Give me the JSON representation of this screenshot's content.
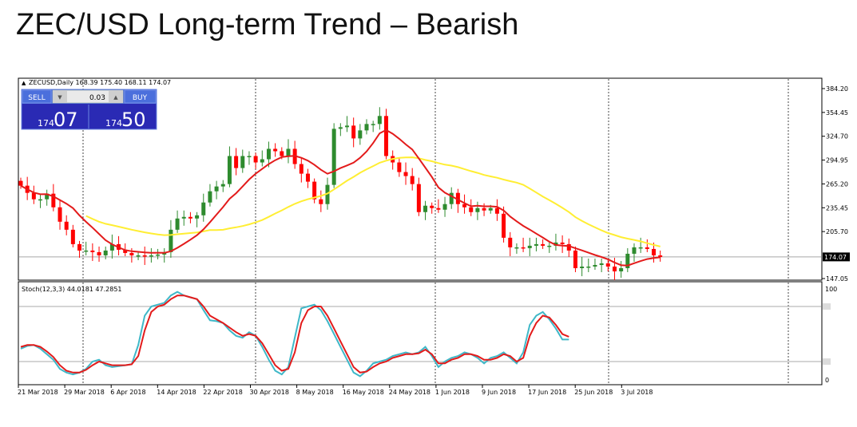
{
  "page_title": "ZEC/USD Long-term Trend – Bearish",
  "colors": {
    "bull": "#2e8b2e",
    "bear": "#ff0000",
    "ma_fast": "#e31b1b",
    "ma_slow": "#ffee33",
    "stoch_main": "#3fb8c8",
    "stoch_signal": "#e31b1b",
    "panel_bg": "#2020b8",
    "panel_header": "#4a6ad8",
    "grid_vline": "#444444",
    "level_line": "#a8a8a8"
  },
  "trade_panel": {
    "sell_label": "SELL",
    "buy_label": "BUY",
    "lot": "0.03",
    "sell_price_small": "174",
    "sell_price_big": "07",
    "buy_price_small": "174",
    "buy_price_big": "50"
  },
  "chart_data": [
    {
      "type": "candlestick",
      "header": "ZECUSD,Daily  168.39 175.40 168.11 174.07",
      "symbol": "ZECUSD",
      "timeframe": "Daily",
      "last_ohlc": {
        "open": 168.39,
        "high": 175.4,
        "low": 168.11,
        "close": 174.07
      },
      "current_price_label": "174.07",
      "y_ticks": [
        "384.20",
        "354.45",
        "324.70",
        "294.95",
        "265.20",
        "235.45",
        "205.70",
        "174.07",
        "147.05"
      ],
      "ylim": [
        147.05,
        384.2
      ],
      "x_ticks": [
        "21 Mar 2018",
        "29 Mar 2018",
        "6 Apr 2018",
        "14 Apr 2018",
        "22 Apr 2018",
        "30 Apr 2018",
        "8 May 2018",
        "16 May 2018",
        "24 May 2018",
        "1 Jun 2018",
        "9 Jun 2018",
        "17 Jun 2018",
        "25 Jun 2018",
        "3 Jul 2018"
      ],
      "closes": [
        263,
        254,
        246,
        246,
        253,
        236,
        218,
        208,
        190,
        182,
        182,
        180,
        176,
        182,
        190,
        183,
        179,
        176,
        176,
        175,
        176,
        177,
        180,
        208,
        222,
        224,
        222,
        226,
        242,
        256,
        262,
        265,
        300,
        285,
        300,
        300,
        292,
        296,
        309,
        306,
        300,
        309,
        290,
        278,
        268,
        246,
        240,
        264,
        334,
        336,
        338,
        322,
        332,
        340,
        340,
        350,
        300,
        292,
        280,
        275,
        265,
        230,
        238,
        235,
        233,
        240,
        254,
        240,
        236,
        230,
        235,
        232,
        235,
        228,
        198,
        186,
        186,
        185,
        188,
        190,
        188,
        188,
        192,
        190,
        182,
        160,
        162,
        162,
        164,
        166,
        162,
        156,
        160,
        178,
        186,
        186,
        184,
        176,
        174.07
      ],
      "ma_fast": "red moving average (values estimated from plot)",
      "ma_slow": "yellow moving average (values estimated from plot)"
    },
    {
      "type": "line",
      "header": "Stoch(12,3,3) 44.0181 47.2851",
      "indicator": "Stoch(12,3,3)",
      "values_label": [
        "44.0181",
        "47.2851"
      ],
      "ylim": [
        0,
        100
      ],
      "y_ticks": [
        "100",
        "0"
      ],
      "levels": [
        80,
        20
      ],
      "series": [
        {
          "name": "Stoch main",
          "values": [
            34,
            37,
            38,
            34,
            28,
            22,
            12,
            8,
            6,
            8,
            12,
            20,
            22,
            16,
            14,
            15,
            16,
            17,
            38,
            70,
            80,
            82,
            84,
            92,
            96,
            92,
            90,
            88,
            76,
            65,
            64,
            62,
            54,
            48,
            46,
            52,
            48,
            36,
            22,
            10,
            6,
            14,
            46,
            78,
            80,
            82,
            76,
            64,
            50,
            36,
            22,
            8,
            4,
            10,
            18,
            20,
            22,
            26,
            28,
            30,
            28,
            30,
            36,
            26,
            14,
            20,
            24,
            26,
            30,
            28,
            24,
            18,
            24,
            26,
            30,
            24,
            18,
            30,
            60,
            70,
            74,
            66,
            56,
            44,
            44
          ]
        },
        {
          "name": "Stoch signal",
          "values": [
            36,
            38,
            38,
            36,
            31,
            25,
            16,
            10,
            8,
            8,
            11,
            16,
            20,
            18,
            16,
            16,
            16,
            17,
            26,
            54,
            74,
            80,
            82,
            88,
            92,
            92,
            90,
            88,
            80,
            70,
            66,
            62,
            57,
            52,
            48,
            50,
            48,
            40,
            28,
            16,
            10,
            12,
            30,
            62,
            76,
            80,
            80,
            70,
            56,
            42,
            28,
            14,
            8,
            9,
            14,
            18,
            20,
            24,
            26,
            28,
            28,
            29,
            33,
            28,
            18,
            18,
            22,
            24,
            28,
            28,
            26,
            22,
            22,
            24,
            28,
            26,
            20,
            24,
            48,
            62,
            70,
            68,
            60,
            50,
            47
          ]
        }
      ]
    }
  ]
}
